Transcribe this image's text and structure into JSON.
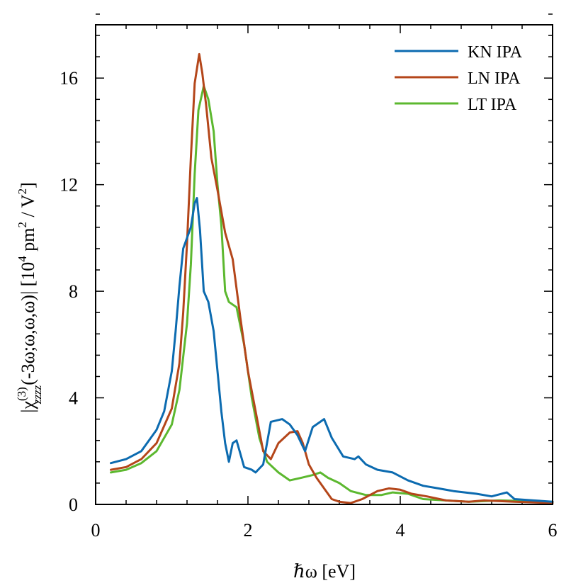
{
  "chart_data": {
    "type": "line",
    "xlabel": "ℏω [eV]",
    "ylabel": {
      "prefix": "|χ",
      "sup": "(3)",
      "sub": "zzzz",
      "suffix": "(-3ω;ω,ω,ω)|  [10",
      "unit_exp": "4",
      "unit_mid": " pm",
      "unit_exp2": "2",
      "unit_end": " / V",
      "unit_exp3": "2",
      "unit_close": "]"
    },
    "xlim": [
      0,
      6
    ],
    "ylim": [
      0,
      18
    ],
    "x_ticks": [
      0,
      2,
      4,
      6
    ],
    "x_tick_labels": [
      "0",
      "2",
      "4",
      "6"
    ],
    "y_ticks": [
      0,
      4,
      8,
      12,
      16
    ],
    "y_tick_labels": [
      "0",
      "4",
      "8",
      "12",
      "16"
    ],
    "x_minor_step": 0.4,
    "y_minor_step": 0.8,
    "grid": false,
    "legend_position": "top-right",
    "series": [
      {
        "name": "KN IPA",
        "color": "#0c6bb0",
        "points": [
          [
            0.2,
            1.55
          ],
          [
            0.4,
            1.7
          ],
          [
            0.6,
            2.0
          ],
          [
            0.8,
            2.8
          ],
          [
            0.9,
            3.5
          ],
          [
            1.0,
            5.0
          ],
          [
            1.05,
            6.5
          ],
          [
            1.1,
            8.2
          ],
          [
            1.15,
            9.6
          ],
          [
            1.2,
            10.0
          ],
          [
            1.25,
            10.4
          ],
          [
            1.3,
            11.3
          ],
          [
            1.33,
            11.5
          ],
          [
            1.37,
            10.3
          ],
          [
            1.42,
            8.0
          ],
          [
            1.48,
            7.6
          ],
          [
            1.55,
            6.5
          ],
          [
            1.6,
            5.0
          ],
          [
            1.65,
            3.5
          ],
          [
            1.7,
            2.3
          ],
          [
            1.75,
            1.6
          ],
          [
            1.8,
            2.3
          ],
          [
            1.85,
            2.4
          ],
          [
            1.9,
            1.9
          ],
          [
            1.95,
            1.4
          ],
          [
            2.05,
            1.3
          ],
          [
            2.1,
            1.2
          ],
          [
            2.2,
            1.5
          ],
          [
            2.3,
            3.1
          ],
          [
            2.45,
            3.2
          ],
          [
            2.55,
            3.0
          ],
          [
            2.65,
            2.6
          ],
          [
            2.75,
            2.0
          ],
          [
            2.85,
            2.9
          ],
          [
            3.0,
            3.2
          ],
          [
            3.1,
            2.5
          ],
          [
            3.25,
            1.8
          ],
          [
            3.4,
            1.7
          ],
          [
            3.45,
            1.8
          ],
          [
            3.55,
            1.5
          ],
          [
            3.7,
            1.3
          ],
          [
            3.9,
            1.2
          ],
          [
            4.1,
            0.9
          ],
          [
            4.3,
            0.7
          ],
          [
            4.5,
            0.6
          ],
          [
            4.7,
            0.5
          ],
          [
            5.0,
            0.4
          ],
          [
            5.2,
            0.3
          ],
          [
            5.4,
            0.45
          ],
          [
            5.5,
            0.2
          ],
          [
            5.75,
            0.15
          ],
          [
            6.0,
            0.1
          ]
        ]
      },
      {
        "name": "LN IPA",
        "color": "#b4461a",
        "points": [
          [
            0.2,
            1.3
          ],
          [
            0.4,
            1.4
          ],
          [
            0.6,
            1.7
          ],
          [
            0.8,
            2.3
          ],
          [
            1.0,
            3.6
          ],
          [
            1.1,
            5.3
          ],
          [
            1.15,
            7.2
          ],
          [
            1.2,
            9.8
          ],
          [
            1.25,
            13.0
          ],
          [
            1.3,
            15.8
          ],
          [
            1.36,
            16.9
          ],
          [
            1.4,
            16.2
          ],
          [
            1.45,
            15.0
          ],
          [
            1.52,
            13.0
          ],
          [
            1.6,
            11.8
          ],
          [
            1.7,
            10.2
          ],
          [
            1.8,
            9.2
          ],
          [
            1.9,
            7.0
          ],
          [
            2.0,
            5.0
          ],
          [
            2.1,
            3.5
          ],
          [
            2.2,
            2.0
          ],
          [
            2.3,
            1.7
          ],
          [
            2.4,
            2.3
          ],
          [
            2.55,
            2.7
          ],
          [
            2.65,
            2.75
          ],
          [
            2.72,
            2.3
          ],
          [
            2.8,
            1.5
          ],
          [
            2.9,
            1.0
          ],
          [
            3.0,
            0.6
          ],
          [
            3.1,
            0.2
          ],
          [
            3.2,
            0.1
          ],
          [
            3.35,
            0.05
          ],
          [
            3.5,
            0.2
          ],
          [
            3.7,
            0.5
          ],
          [
            3.85,
            0.6
          ],
          [
            4.0,
            0.55
          ],
          [
            4.15,
            0.4
          ],
          [
            4.35,
            0.3
          ],
          [
            4.6,
            0.15
          ],
          [
            4.9,
            0.1
          ],
          [
            5.1,
            0.15
          ],
          [
            5.5,
            0.1
          ],
          [
            6.0,
            0.05
          ]
        ]
      },
      {
        "name": "LT IPA",
        "color": "#5cb82f",
        "points": [
          [
            0.2,
            1.2
          ],
          [
            0.4,
            1.3
          ],
          [
            0.6,
            1.55
          ],
          [
            0.8,
            2.0
          ],
          [
            1.0,
            3.0
          ],
          [
            1.1,
            4.3
          ],
          [
            1.2,
            6.8
          ],
          [
            1.25,
            9.0
          ],
          [
            1.3,
            12.4
          ],
          [
            1.35,
            14.8
          ],
          [
            1.42,
            15.7
          ],
          [
            1.48,
            15.2
          ],
          [
            1.55,
            14.0
          ],
          [
            1.6,
            12.0
          ],
          [
            1.65,
            10.5
          ],
          [
            1.7,
            8.0
          ],
          [
            1.75,
            7.6
          ],
          [
            1.85,
            7.4
          ],
          [
            1.95,
            6.0
          ],
          [
            2.05,
            4.0
          ],
          [
            2.15,
            2.5
          ],
          [
            2.25,
            1.6
          ],
          [
            2.4,
            1.2
          ],
          [
            2.55,
            0.9
          ],
          [
            2.7,
            1.0
          ],
          [
            2.85,
            1.1
          ],
          [
            2.95,
            1.2
          ],
          [
            3.05,
            1.0
          ],
          [
            3.2,
            0.8
          ],
          [
            3.35,
            0.5
          ],
          [
            3.55,
            0.35
          ],
          [
            3.75,
            0.35
          ],
          [
            3.9,
            0.45
          ],
          [
            4.1,
            0.4
          ],
          [
            4.3,
            0.2
          ],
          [
            4.6,
            0.15
          ],
          [
            4.9,
            0.1
          ],
          [
            5.3,
            0.15
          ],
          [
            6.0,
            0.1
          ]
        ]
      }
    ]
  }
}
